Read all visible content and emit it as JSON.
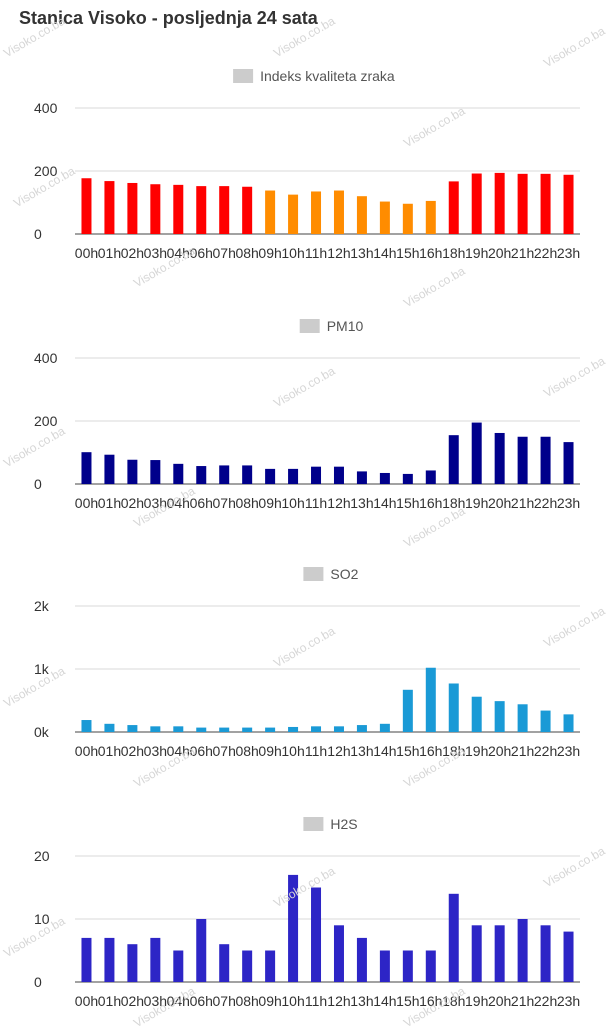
{
  "page": {
    "title": "Stanica Visoko - posljednja 24 sata",
    "watermark": "Visoko.co.ba"
  },
  "categories": [
    "00h",
    "01h",
    "02h",
    "03h",
    "04h",
    "06h",
    "07h",
    "08h",
    "09h",
    "10h",
    "11h",
    "12h",
    "13h",
    "14h",
    "15h",
    "16h",
    "18h",
    "19h",
    "20h",
    "21h",
    "22h",
    "23h"
  ],
  "chart_data": [
    {
      "type": "bar",
      "title": "Indeks kvaliteta zraka",
      "legend_swatch": "#cccccc",
      "categories": [
        "00h",
        "01h",
        "02h",
        "03h",
        "04h",
        "06h",
        "07h",
        "08h",
        "09h",
        "10h",
        "11h",
        "12h",
        "13h",
        "14h",
        "15h",
        "16h",
        "18h",
        "19h",
        "20h",
        "21h",
        "22h",
        "23h"
      ],
      "values": [
        177,
        168,
        162,
        158,
        156,
        152,
        152,
        150,
        138,
        125,
        135,
        138,
        120,
        103,
        96,
        105,
        167,
        192,
        194,
        191,
        191,
        188
      ],
      "colors": [
        "#ff0000",
        "#ff0000",
        "#ff0000",
        "#ff0000",
        "#ff0000",
        "#ff0000",
        "#ff0000",
        "#ff0000",
        "#ff8c00",
        "#ff8c00",
        "#ff8c00",
        "#ff8c00",
        "#ff8c00",
        "#ff8c00",
        "#ff8c00",
        "#ff8c00",
        "#ff0000",
        "#ff0000",
        "#ff0000",
        "#ff0000",
        "#ff0000",
        "#ff0000"
      ],
      "y_ticks": [
        0,
        200,
        400
      ],
      "y_tick_labels": [
        "0",
        "200",
        "400"
      ],
      "ylim": [
        0,
        400
      ],
      "grid": true,
      "legend_position": "top-center"
    },
    {
      "type": "bar",
      "title": "PM10",
      "legend_swatch": "#cccccc",
      "categories": [
        "00h",
        "01h",
        "02h",
        "03h",
        "04h",
        "06h",
        "07h",
        "08h",
        "09h",
        "10h",
        "11h",
        "12h",
        "13h",
        "14h",
        "15h",
        "16h",
        "18h",
        "19h",
        "20h",
        "21h",
        "22h",
        "23h"
      ],
      "values": [
        101,
        93,
        77,
        76,
        64,
        57,
        59,
        59,
        48,
        48,
        55,
        55,
        40,
        35,
        32,
        43,
        155,
        195,
        162,
        150,
        150,
        133
      ],
      "color": "#00008b",
      "y_ticks": [
        0,
        200,
        400
      ],
      "y_tick_labels": [
        "0",
        "200",
        "400"
      ],
      "ylim": [
        0,
        400
      ],
      "grid": true,
      "legend_position": "top-center"
    },
    {
      "type": "bar",
      "title": "SO2",
      "legend_swatch": "#cccccc",
      "categories": [
        "00h",
        "01h",
        "02h",
        "03h",
        "04h",
        "06h",
        "07h",
        "08h",
        "09h",
        "10h",
        "11h",
        "12h",
        "13h",
        "14h",
        "15h",
        "16h",
        "18h",
        "19h",
        "20h",
        "21h",
        "22h",
        "23h"
      ],
      "values": [
        190,
        130,
        110,
        90,
        90,
        70,
        70,
        70,
        70,
        80,
        90,
        90,
        110,
        130,
        670,
        1020,
        770,
        560,
        490,
        440,
        340,
        280
      ],
      "color": "#1a9ad6",
      "y_ticks": [
        0,
        1000,
        2000
      ],
      "y_tick_labels": [
        "0k",
        "1k",
        "2k"
      ],
      "ylim": [
        0,
        2000
      ],
      "grid": true,
      "legend_position": "top-center"
    },
    {
      "type": "bar",
      "title": "H2S",
      "legend_swatch": "#cccccc",
      "categories": [
        "00h",
        "01h",
        "02h",
        "03h",
        "04h",
        "06h",
        "07h",
        "08h",
        "09h",
        "10h",
        "11h",
        "12h",
        "13h",
        "14h",
        "15h",
        "16h",
        "18h",
        "19h",
        "20h",
        "21h",
        "22h",
        "23h"
      ],
      "values": [
        7,
        7,
        6,
        7,
        5,
        10,
        6,
        5,
        5,
        17,
        15,
        9,
        7,
        5,
        5,
        5,
        14,
        9,
        9,
        10,
        9,
        8
      ],
      "color": "#2d25c6",
      "y_ticks": [
        0,
        10,
        20
      ],
      "y_tick_labels": [
        "0",
        "10",
        "20"
      ],
      "ylim": [
        0,
        20
      ],
      "grid": true,
      "legend_position": "top-center"
    }
  ]
}
